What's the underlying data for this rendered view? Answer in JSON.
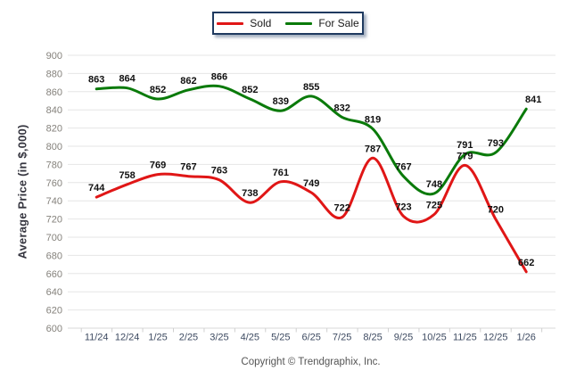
{
  "footer": {
    "copyright": "Copyright © Trendgraphix, Inc."
  },
  "chart_data": {
    "type": "line",
    "title": "",
    "xlabel": "",
    "ylabel": "Average Price (in $,000)",
    "categories": [
      "11/24",
      "12/24",
      "1/25",
      "2/25",
      "3/25",
      "4/25",
      "5/25",
      "6/25",
      "7/25",
      "8/25",
      "9/25",
      "10/25",
      "11/25",
      "12/25",
      "1/26"
    ],
    "series": [
      {
        "name": "Sold",
        "color": "#e01616",
        "values": [
          744,
          758,
          769,
          767,
          763,
          738,
          761,
          749,
          722,
          787,
          723,
          725,
          779,
          720,
          662
        ]
      },
      {
        "name": "For Sale",
        "color": "#0a7a0a",
        "values": [
          863,
          864,
          852,
          862,
          866,
          852,
          839,
          855,
          832,
          819,
          767,
          748,
          791,
          793,
          841
        ]
      }
    ],
    "ylim": [
      600,
      900
    ],
    "ytick_step": 20,
    "grid": "horizontal",
    "line_style": "smooth",
    "point_labels": true,
    "legend_position": "top-center"
  }
}
